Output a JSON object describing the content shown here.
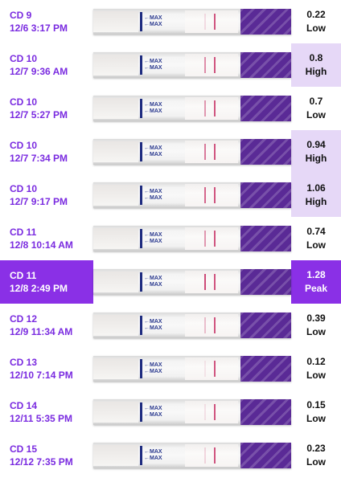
{
  "colors": {
    "label_text": "#7a2be0",
    "peak_fill": "#8a30e6",
    "high_fill": "#e6d8f7",
    "test_line": "#c8376a",
    "cap": "#5a2a96",
    "arrow": "#2b3a8f"
  },
  "strip_marker": {
    "arrow": "←",
    "text": "MAX"
  },
  "entries": [
    {
      "cd": "CD 9",
      "datetime": "12/6 3:17 PM",
      "value": "0.22",
      "level": "Low",
      "highlight": "none",
      "test_line_intensity": 0.15
    },
    {
      "cd": "CD 10",
      "datetime": "12/7 9:36 AM",
      "value": "0.8",
      "level": "High",
      "highlight": "high",
      "test_line_intensity": 0.55
    },
    {
      "cd": "CD 10",
      "datetime": "12/7 5:27 PM",
      "value": "0.7",
      "level": "Low",
      "highlight": "none",
      "test_line_intensity": 0.5
    },
    {
      "cd": "CD 10",
      "datetime": "12/7 7:34 PM",
      "value": "0.94",
      "level": "High",
      "highlight": "high",
      "test_line_intensity": 0.65
    },
    {
      "cd": "CD 10",
      "datetime": "12/7 9:17 PM",
      "value": "1.06",
      "level": "High",
      "highlight": "high",
      "test_line_intensity": 0.75
    },
    {
      "cd": "CD 11",
      "datetime": "12/8 10:14 AM",
      "value": "0.74",
      "level": "Low",
      "highlight": "none",
      "test_line_intensity": 0.5
    },
    {
      "cd": "CD 11",
      "datetime": "12/8 2:49 PM",
      "value": "1.28",
      "level": "Peak",
      "highlight": "peak",
      "test_line_intensity": 0.9
    },
    {
      "cd": "CD 12",
      "datetime": "12/9 11:34 AM",
      "value": "0.39",
      "level": "Low",
      "highlight": "none",
      "test_line_intensity": 0.3
    },
    {
      "cd": "CD 13",
      "datetime": "12/10 7:14 PM",
      "value": "0.12",
      "level": "Low",
      "highlight": "none",
      "test_line_intensity": 0.1
    },
    {
      "cd": "CD 14",
      "datetime": "12/11 5:35 PM",
      "value": "0.15",
      "level": "Low",
      "highlight": "none",
      "test_line_intensity": 0.12
    },
    {
      "cd": "CD 15",
      "datetime": "12/12 7:35 PM",
      "value": "0.23",
      "level": "Low",
      "highlight": "none",
      "test_line_intensity": 0.18
    }
  ]
}
